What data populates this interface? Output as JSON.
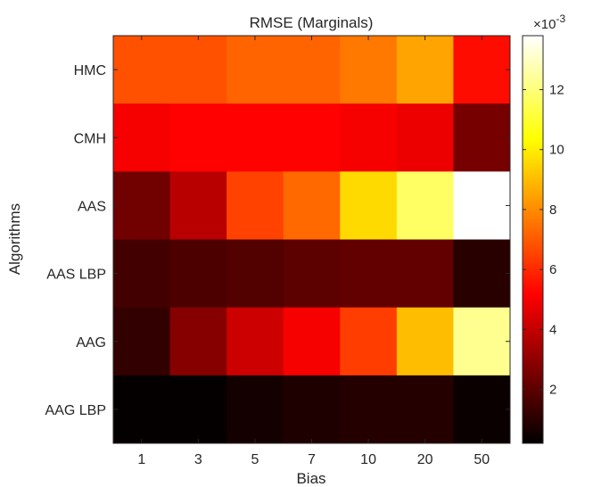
{
  "chart_data": {
    "type": "heatmap",
    "title": "RMSE (Marginals)",
    "xlabel": "Bias",
    "ylabel": "Algorithms",
    "x_categories": [
      "1",
      "3",
      "5",
      "7",
      "10",
      "20",
      "50"
    ],
    "y_categories": [
      "HMC",
      "CMH",
      "AAS",
      "AAS LBP",
      "AAG",
      "AAG LBP"
    ],
    "values_x1e3": [
      [
        6.8,
        6.8,
        7.2,
        7.2,
        7.6,
        8.5,
        5.4
      ],
      [
        5.0,
        5.2,
        5.2,
        5.2,
        5.0,
        4.8,
        2.5
      ],
      [
        2.4,
        3.8,
        6.5,
        7.3,
        9.6,
        11.7,
        13.8
      ],
      [
        1.5,
        1.7,
        1.8,
        2.0,
        2.1,
        2.1,
        1.0
      ],
      [
        1.2,
        2.8,
        4.2,
        5.0,
        6.4,
        9.0,
        12.3
      ],
      [
        0.3,
        0.3,
        0.6,
        0.8,
        0.9,
        0.9,
        0.4
      ]
    ],
    "colormap": "hot",
    "colorbar": {
      "range_x1e3": [
        0.2,
        13.8
      ],
      "ticks": [
        "2",
        "4",
        "6",
        "8",
        "10",
        "12"
      ],
      "tick_values": [
        2,
        4,
        6,
        8,
        10,
        12
      ],
      "exponent_label": "×10",
      "exponent": "-3"
    }
  }
}
